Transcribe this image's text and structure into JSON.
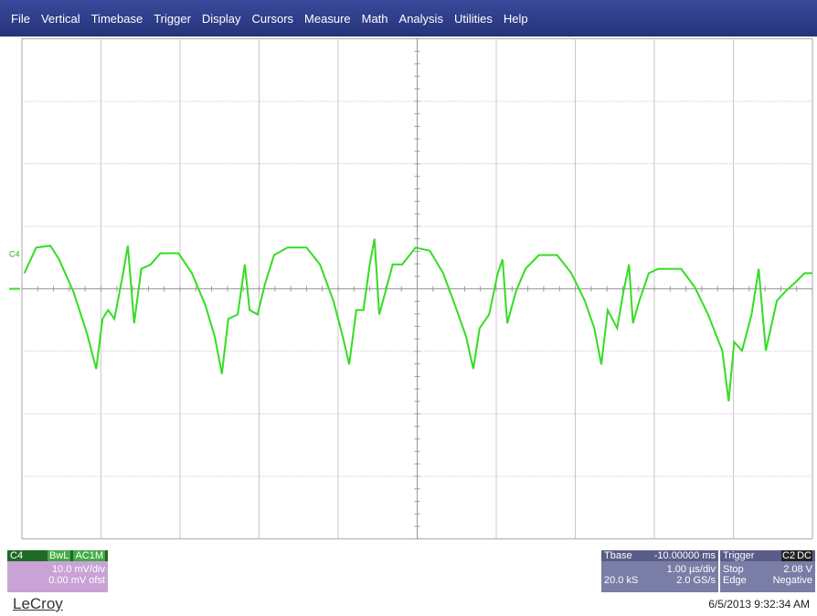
{
  "menu": [
    "File",
    "Vertical",
    "Timebase",
    "Trigger",
    "Display",
    "Cursors",
    "Measure",
    "Math",
    "Analysis",
    "Utilities",
    "Help"
  ],
  "channel_marker": "C4",
  "waveform": {
    "color": "#33dd22",
    "x": [
      0.03,
      0.18,
      0.36,
      0.47,
      0.65,
      0.82,
      0.94,
      1.02,
      1.09,
      1.17,
      1.28,
      1.34,
      1.42,
      1.51,
      1.63,
      1.75,
      1.98,
      2.15,
      2.32,
      2.44,
      2.53,
      2.61,
      2.73,
      2.82,
      2.88,
      2.98,
      3.08,
      3.19,
      3.36,
      3.6,
      3.77,
      3.94,
      4.06,
      4.14,
      4.23,
      4.32,
      4.4,
      4.46,
      4.52,
      4.6,
      4.69,
      4.81,
      4.98,
      5.16,
      5.33,
      5.5,
      5.62,
      5.71,
      5.79,
      5.91,
      6.02,
      6.08,
      6.14,
      6.25,
      6.37,
      6.54,
      6.77,
      6.95,
      7.12,
      7.24,
      7.33,
      7.41,
      7.53,
      7.61,
      7.68,
      7.73,
      7.81,
      7.93,
      8.05,
      8.34,
      8.51,
      8.68,
      8.86,
      8.94,
      9.01,
      9.11,
      9.23,
      9.32,
      9.41,
      9.55,
      9.66,
      9.78,
      9.9,
      10.0
    ],
    "y": [
      0.25,
      0.66,
      0.69,
      0.47,
      -0.04,
      -0.7,
      -1.28,
      -0.48,
      -0.34,
      -0.48,
      0.25,
      0.69,
      -0.55,
      0.32,
      0.39,
      0.57,
      0.57,
      0.25,
      -0.26,
      -0.77,
      -1.36,
      -0.48,
      -0.41,
      0.39,
      -0.34,
      -0.41,
      0.1,
      0.54,
      0.66,
      0.66,
      0.39,
      -0.19,
      -0.77,
      -1.21,
      -0.34,
      -0.34,
      0.39,
      0.8,
      -0.41,
      -0.04,
      0.39,
      0.39,
      0.66,
      0.61,
      0.25,
      -0.34,
      -0.77,
      -1.28,
      -0.63,
      -0.41,
      0.25,
      0.47,
      -0.55,
      -0.04,
      0.32,
      0.54,
      0.54,
      0.25,
      -0.19,
      -0.63,
      -1.21,
      -0.34,
      -0.63,
      -0.04,
      0.39,
      -0.55,
      -0.19,
      0.25,
      0.32,
      0.32,
      0.03,
      -0.41,
      -0.99,
      -1.8,
      -0.85,
      -0.99,
      -0.41,
      0.32,
      -0.99,
      -0.19,
      -0.04,
      0.1,
      0.25,
      0.25
    ]
  },
  "channel_box": {
    "name": "C4",
    "flags": [
      "BwL",
      "AC1M"
    ],
    "scale": "10.0 mV/div",
    "offset": "0.00 mV ofst"
  },
  "brand": "LeCroy",
  "timebase_box": {
    "label": "Tbase",
    "delay": "-10.00000 ms",
    "scale": "1.00 µs/div",
    "samples": "20.0 kS",
    "rate": "2.0 GS/s"
  },
  "trigger_box": {
    "label": "Trigger",
    "source": "C2",
    "coupling": "DC",
    "mode": "Stop",
    "level": "2.08 V",
    "type": "Edge",
    "slope": "Negative"
  },
  "timestamp": "6/5/2013 9:32:34 AM"
}
